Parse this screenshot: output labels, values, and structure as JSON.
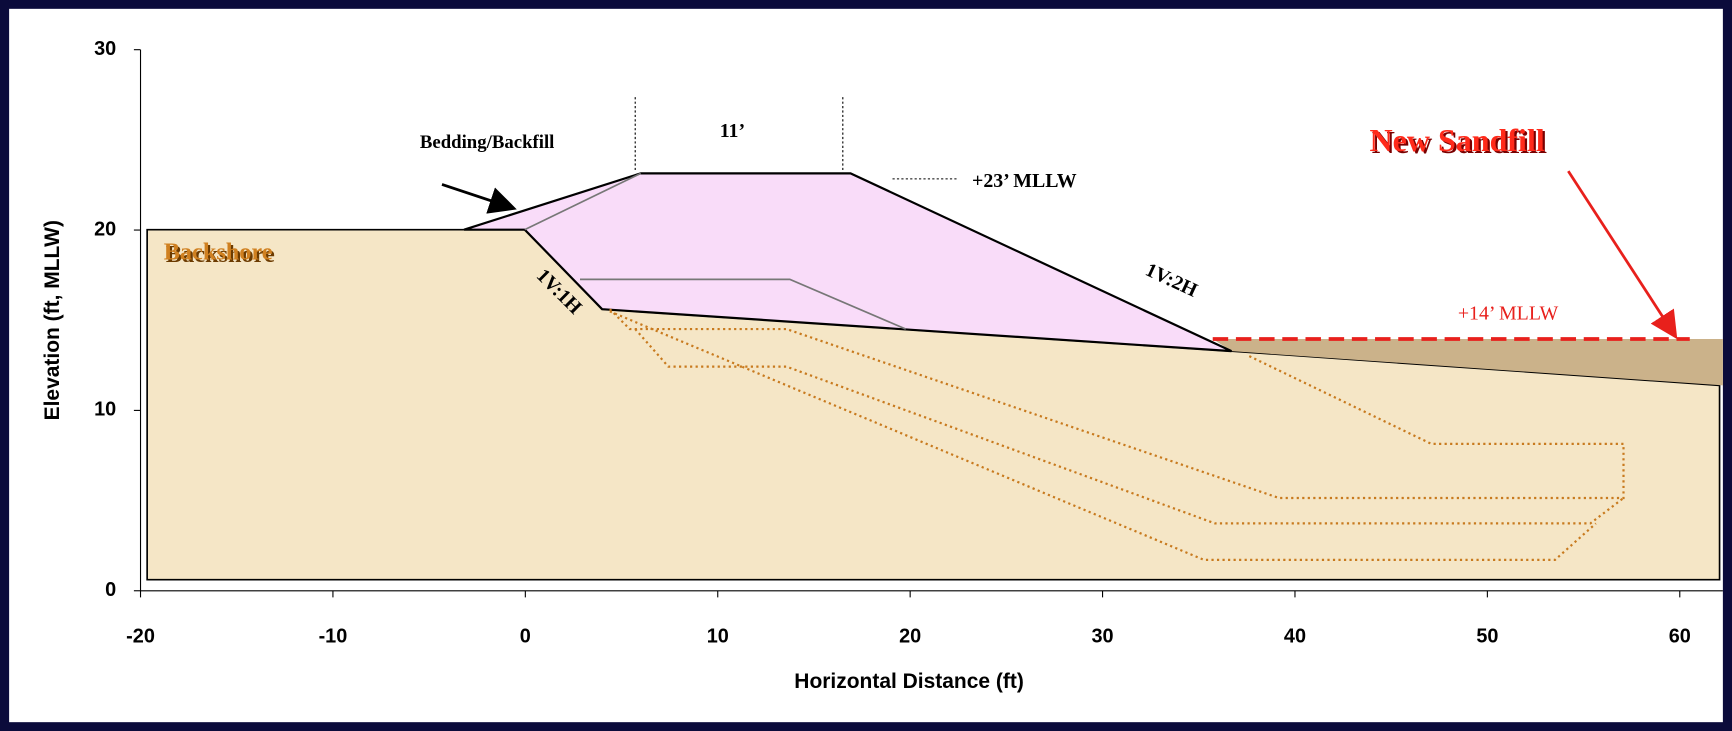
{
  "chart_data": {
    "type": "profile",
    "xlabel": "Horizontal Distance (ft)",
    "ylabel": "Elevation (ft, MLLW)",
    "xlim": [
      -20,
      62.24
    ],
    "ylim": [
      0,
      30
    ],
    "xticks": [
      -20,
      -10,
      0,
      10,
      20,
      30,
      40,
      50,
      60
    ],
    "yticks": [
      0,
      10,
      20,
      30
    ],
    "annotations": [
      "Bedding/Backfill",
      "11’",
      "+23’ MLLW",
      "1V:2H",
      "1V:1H",
      "Backshore",
      "New Sandfill",
      "+14’ MLLW"
    ]
  }
}
